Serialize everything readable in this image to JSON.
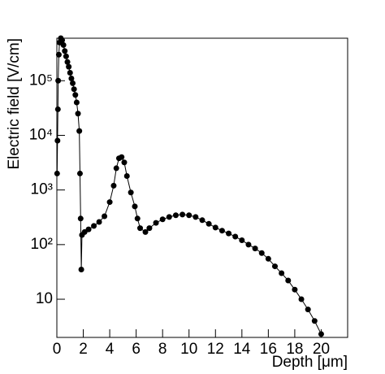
{
  "chart_data": {
    "type": "line",
    "x_label": "Depth [μm]",
    "y_label": "Electric field [V/cm]",
    "log_y": true,
    "color": "#000000",
    "markers": true,
    "xlim": [
      0,
      22
    ],
    "xticks": [
      0,
      2,
      4,
      6,
      8,
      10,
      12,
      14,
      16,
      18,
      20
    ],
    "ylim": [
      2,
      600000
    ],
    "yticks": [
      10,
      {
        "value": 100,
        "label": "10²"
      },
      {
        "value": 1000,
        "label": "10³"
      },
      {
        "value": 10000,
        "label": "10⁴"
      },
      {
        "value": 100000,
        "label": "10⁵"
      }
    ],
    "x": [
      0.02,
      0.05,
      0.08,
      0.1,
      0.15,
      0.2,
      0.3,
      0.4,
      0.5,
      0.6,
      0.7,
      0.8,
      0.9,
      1.0,
      1.1,
      1.2,
      1.3,
      1.4,
      1.5,
      1.6,
      1.7,
      1.75,
      1.8,
      1.85,
      1.9,
      2.1,
      2.4,
      2.8,
      3.2,
      3.6,
      4.0,
      4.3,
      4.5,
      4.7,
      4.9,
      5.1,
      5.3,
      5.6,
      5.9,
      6.1,
      6.3,
      6.7,
      7.0,
      7.5,
      8.0,
      8.5,
      9.0,
      9.5,
      10.0,
      10.5,
      11.0,
      11.5,
      12.0,
      12.5,
      13.0,
      13.5,
      14.0,
      14.5,
      15.0,
      15.5,
      16.0,
      16.5,
      17.0,
      17.5,
      18.0,
      18.5,
      19.0,
      19.5,
      20.0
    ],
    "values": [
      2000,
      8000,
      30000,
      100000,
      300000,
      500000,
      600000,
      550000,
      450000,
      350000,
      280000,
      220000,
      180000,
      140000,
      110000,
      90000,
      70000,
      55000,
      40000,
      25000,
      12000,
      2000,
      300,
      35,
      150,
      170,
      190,
      220,
      260,
      330,
      600,
      1200,
      2500,
      3800,
      4000,
      3200,
      1800,
      900,
      500,
      300,
      200,
      170,
      200,
      250,
      290,
      320,
      345,
      355,
      345,
      320,
      280,
      240,
      205,
      180,
      160,
      140,
      120,
      100,
      85,
      70,
      55,
      40,
      30,
      22,
      15,
      10,
      6.5,
      4,
      2.3
    ]
  }
}
